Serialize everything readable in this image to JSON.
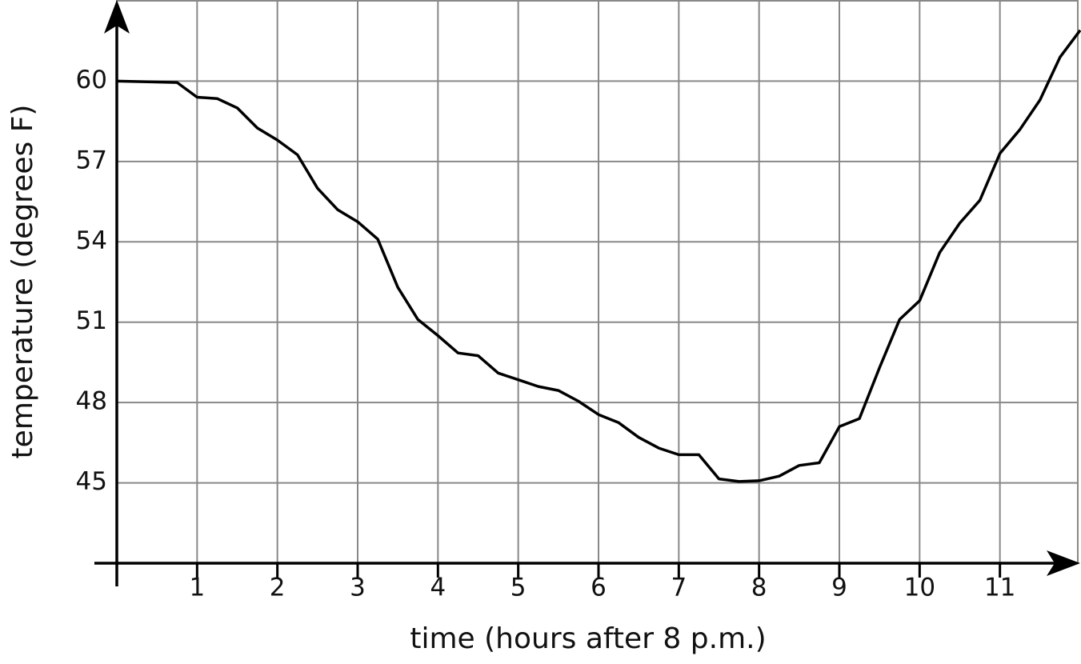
{
  "chart_data": {
    "type": "line",
    "xlabel": "time (hours after 8 p.m.)",
    "ylabel": "temperature (degrees F)",
    "x": [
      0,
      0.75,
      1,
      1.25,
      1.5,
      1.75,
      2,
      2.25,
      2.5,
      2.75,
      3,
      3.25,
      3.5,
      3.75,
      4,
      4.25,
      4.5,
      4.75,
      5,
      5.25,
      5.5,
      5.75,
      6,
      6.25,
      6.5,
      6.75,
      7,
      7.25,
      7.5,
      7.75,
      8,
      8.25,
      8.5,
      8.75,
      9,
      9.25,
      9.5,
      9.75,
      10,
      10.25,
      10.5,
      10.75,
      11,
      11.25,
      11.5,
      11.75,
      12
    ],
    "values": [
      60,
      59.95,
      59.4,
      59.35,
      59,
      58.25,
      57.8,
      57.25,
      56,
      55.2,
      54.75,
      54.1,
      52.3,
      51.1,
      50.5,
      49.85,
      49.75,
      49.1,
      48.85,
      48.6,
      48.45,
      48.05,
      47.55,
      47.25,
      46.7,
      46.3,
      46.05,
      46.05,
      45.15,
      45.05,
      45.08,
      45.25,
      45.65,
      45.75,
      47.1,
      47.4,
      49.3,
      51.1,
      51.8,
      53.6,
      54.7,
      55.55,
      57.3,
      58.2,
      59.3,
      60.9,
      61.9
    ],
    "color": "#000000",
    "xlim": [
      0,
      12
    ],
    "ylim": [
      42,
      63
    ],
    "xticks": [
      1,
      2,
      3,
      4,
      5,
      6,
      7,
      8,
      9,
      10,
      11
    ],
    "yticks": [
      45,
      48,
      51,
      54,
      57,
      60
    ],
    "grid": true
  }
}
